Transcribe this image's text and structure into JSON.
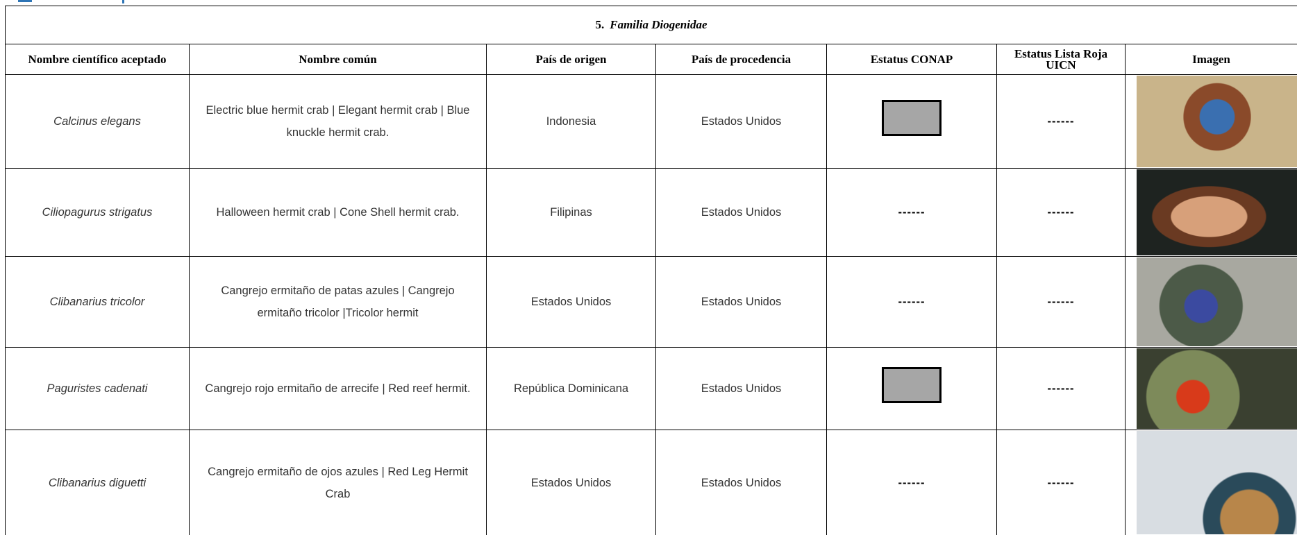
{
  "table": {
    "title": {
      "number": "5.",
      "text": "Familia Diogenidae"
    },
    "headers": [
      "Nombre científico aceptado",
      "Nombre común",
      "País de origen",
      "País de procedencia",
      "Estatus CONAP",
      "Estatus Lista Roja UICN",
      "Imagen"
    ],
    "rows": [
      {
        "scientific": "Calcinus elegans",
        "common": "Electric blue hermit crab | Elegant hermit crab | Blue knuckle hermit crab.",
        "origin": "Indonesia",
        "source": "Estados Unidos",
        "iucn": "------"
      },
      {
        "scientific": "Ciliopagurus strigatus",
        "common": "Halloween hermit crab | Cone Shell hermit crab.",
        "origin": "Filipinas",
        "source": "Estados Unidos",
        "conap": "------",
        "iucn": "------"
      },
      {
        "scientific": "Clibanarius tricolor",
        "common": "Cangrejo ermitaño de patas azules | Cangrejo ermitaño tricolor |Tricolor hermit",
        "origin": "Estados Unidos",
        "source": "Estados Unidos",
        "conap": "------",
        "iucn": "------"
      },
      {
        "scientific": "Paguristes cadenati",
        "common": "Cangrejo rojo ermitaño de arrecife | Red reef hermit.",
        "origin": "República Dominicana",
        "source": "Estados Unidos",
        "iucn": "------"
      },
      {
        "scientific": "Clibanarius diguetti",
        "common": "Cangrejo ermitaño de ojos azules | Red Leg Hermit Crab",
        "origin": "Estados Unidos",
        "source": "Estados Unidos",
        "conap": "------",
        "iucn": "------"
      }
    ]
  }
}
